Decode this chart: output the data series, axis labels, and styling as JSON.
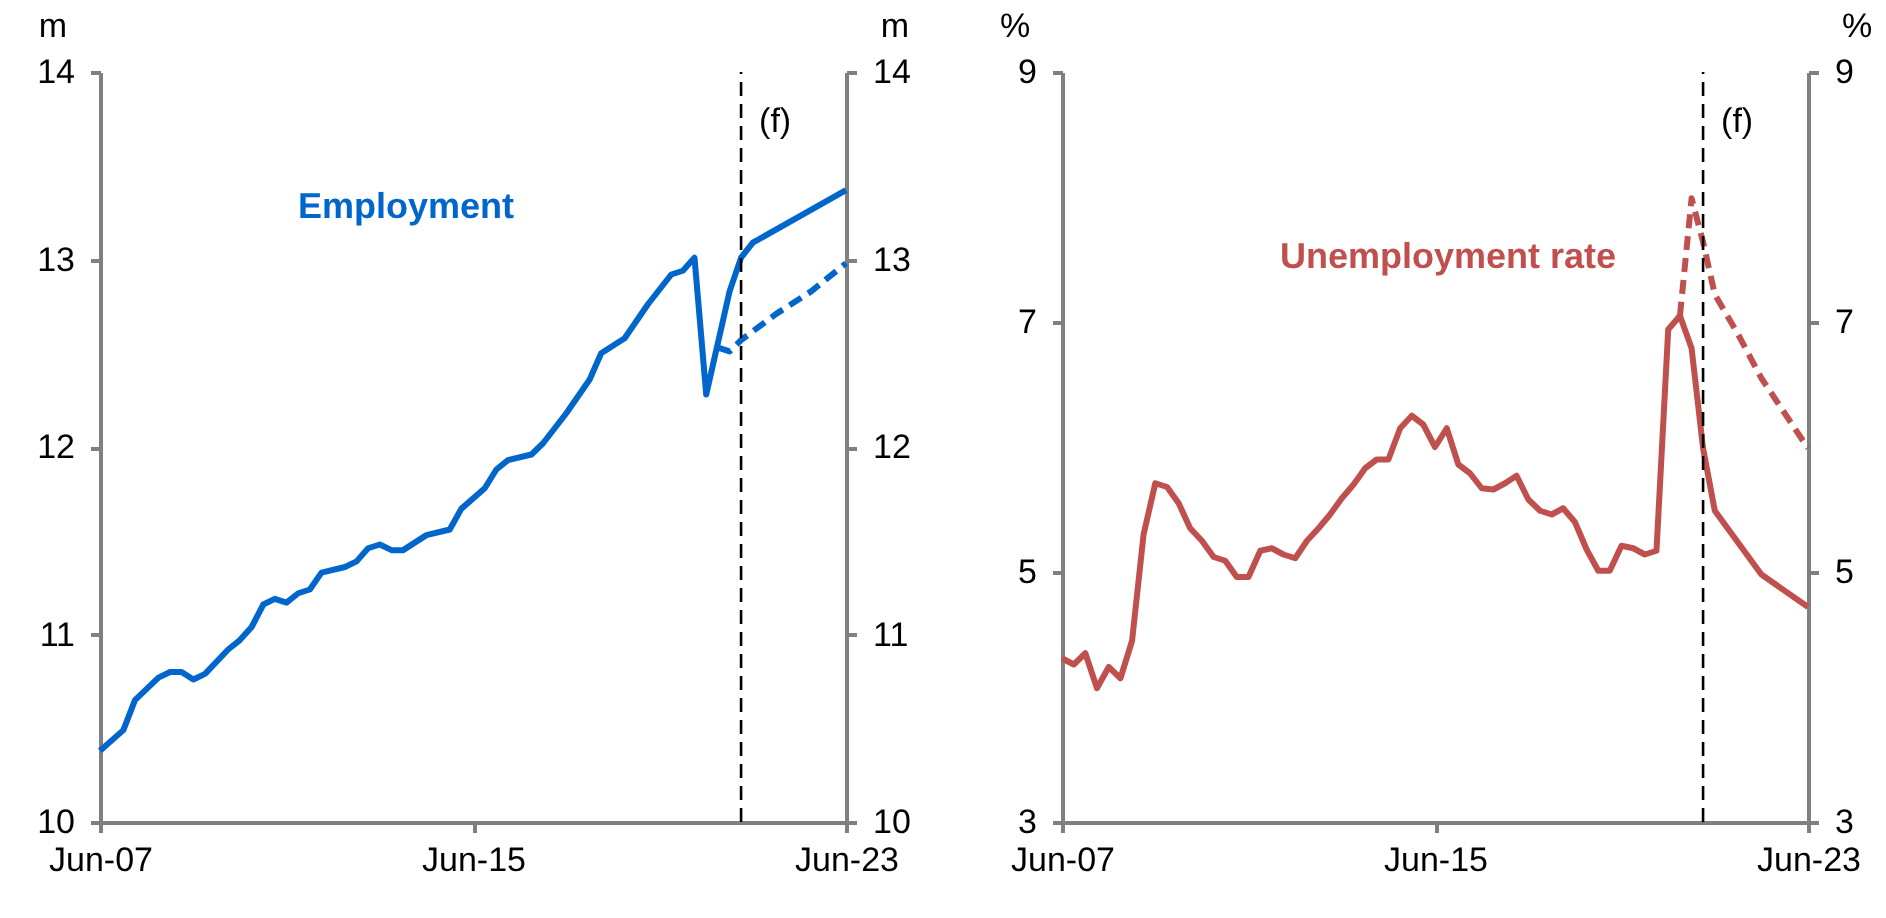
{
  "chart_data": [
    {
      "type": "line",
      "ylabel": "m",
      "y2label": "m",
      "xlim": [
        "2007-06",
        "2023-06"
      ],
      "xticks": [
        {
          "value": "2007-06",
          "label": "Jun-07"
        },
        {
          "value": "2015-06",
          "label": "Jun-15"
        },
        {
          "value": "2023-06",
          "label": "Jun-23"
        }
      ],
      "ylim": [
        10,
        14
      ],
      "yticks": [
        10,
        11,
        12,
        13,
        14
      ],
      "y2lim": [
        10,
        14
      ],
      "y2ticks": [
        10,
        11,
        12,
        13,
        14
      ],
      "series": [
        {
          "name": "Employment",
          "color": "#0066cc",
          "line_style": "solid",
          "x": [
            "2007-06",
            "2007-12",
            "2008-03",
            "2008-09",
            "2008-12",
            "2009-03",
            "2009-06",
            "2009-09",
            "2010-03",
            "2010-06",
            "2010-09",
            "2010-12",
            "2011-03",
            "2011-06",
            "2011-09",
            "2011-12",
            "2012-03",
            "2012-09",
            "2012-12",
            "2013-03",
            "2013-06",
            "2013-09",
            "2013-12",
            "2014-06",
            "2014-12",
            "2015-03",
            "2015-09",
            "2015-12",
            "2016-03",
            "2016-09",
            "2016-12",
            "2017-06",
            "2017-12",
            "2018-03",
            "2018-09",
            "2019-03",
            "2019-09",
            "2019-12",
            "2020-03",
            "2020-06",
            "2020-12",
            "2021-03",
            "2021-06",
            "2023-06"
          ],
          "values": [
            10.38,
            10.49,
            10.65,
            10.77,
            10.8,
            10.8,
            10.76,
            10.79,
            10.92,
            10.97,
            11.04,
            11.16,
            11.19,
            11.17,
            11.22,
            11.24,
            11.33,
            11.36,
            11.39,
            11.46,
            11.48,
            11.45,
            11.45,
            11.53,
            11.56,
            11.67,
            11.78,
            11.88,
            11.93,
            11.96,
            12.02,
            12.18,
            12.36,
            12.5,
            12.58,
            12.76,
            12.92,
            12.94,
            13.01,
            12.28,
            12.83,
            13.01,
            13.09,
            13.37
          ]
        },
        {
          "color": "#0066cc",
          "line_style": "dashed",
          "x": [
            "2020-09",
            "2020-12",
            "2021-03",
            "2021-12",
            "2022-09",
            "2023-06"
          ],
          "values": [
            12.53,
            12.51,
            12.57,
            12.71,
            12.83,
            12.98
          ]
        }
      ],
      "ref_lines": [
        {
          "axis": "x",
          "value": "2021-03",
          "label": "(f)",
          "color": "#000000",
          "line_style": "dashed"
        }
      ]
    },
    {
      "type": "line",
      "ylabel": "%",
      "y2label": "%",
      "xlim": [
        "2007-06",
        "2023-06"
      ],
      "xticks": [
        {
          "value": "2007-06",
          "label": "Jun-07"
        },
        {
          "value": "2015-06",
          "label": "Jun-15"
        },
        {
          "value": "2023-06",
          "label": "Jun-23"
        }
      ],
      "ylim": [
        3,
        9
      ],
      "yticks": [
        3,
        5,
        7,
        9
      ],
      "y2lim": [
        3,
        9
      ],
      "y2ticks": [
        3,
        5,
        7,
        9
      ],
      "series": [
        {
          "name": "Unemployment rate",
          "color": "#c0504d",
          "line_style": "solid",
          "x": [
            "2007-06",
            "2007-09",
            "2007-12",
            "2008-03",
            "2008-06",
            "2008-09",
            "2008-12",
            "2009-03",
            "2009-06",
            "2009-09",
            "2009-12",
            "2010-03",
            "2010-06",
            "2010-09",
            "2010-12",
            "2011-03",
            "2011-06",
            "2011-09",
            "2011-12",
            "2012-03",
            "2012-06",
            "2012-09",
            "2012-12",
            "2013-03",
            "2013-06",
            "2013-09",
            "2013-12",
            "2014-03",
            "2014-06",
            "2014-09",
            "2014-12",
            "2015-03",
            "2015-06",
            "2015-09",
            "2015-12",
            "2016-03",
            "2016-06",
            "2016-09",
            "2016-12",
            "2017-03",
            "2017-06",
            "2017-09",
            "2017-12",
            "2018-03",
            "2018-06",
            "2018-09",
            "2018-12",
            "2019-03",
            "2019-06",
            "2019-09",
            "2019-12",
            "2020-03",
            "2020-06",
            "2020-09",
            "2020-12",
            "2021-03",
            "2021-06",
            "2022-06",
            "2023-06"
          ],
          "values": [
            4.31,
            4.26,
            4.35,
            4.07,
            4.24,
            4.15,
            4.45,
            5.3,
            5.71,
            5.68,
            5.55,
            5.35,
            5.25,
            5.12,
            5.09,
            4.96,
            4.96,
            5.17,
            5.19,
            5.14,
            5.11,
            5.25,
            5.35,
            5.46,
            5.59,
            5.7,
            5.83,
            5.9,
            5.9,
            6.15,
            6.25,
            6.18,
            6.0,
            6.15,
            5.86,
            5.79,
            5.67,
            5.66,
            5.71,
            5.77,
            5.58,
            5.49,
            5.46,
            5.51,
            5.4,
            5.18,
            5.01,
            5.01,
            5.21,
            5.19,
            5.14,
            5.17,
            6.94,
            7.05,
            6.79,
            5.99,
            5.49,
            4.98,
            4.72
          ]
        },
        {
          "color": "#c0504d",
          "line_style": "dashed",
          "x": [
            "2020-09",
            "2020-12",
            "2021-03",
            "2021-06",
            "2021-12",
            "2022-06",
            "2023-06"
          ],
          "values": [
            7.05,
            7.99,
            7.64,
            7.22,
            6.9,
            6.55,
            5.99
          ]
        }
      ],
      "ref_lines": [
        {
          "axis": "x",
          "value": "2021-03",
          "label": "(f)",
          "color": "#000000",
          "line_style": "dashed"
        }
      ]
    }
  ]
}
